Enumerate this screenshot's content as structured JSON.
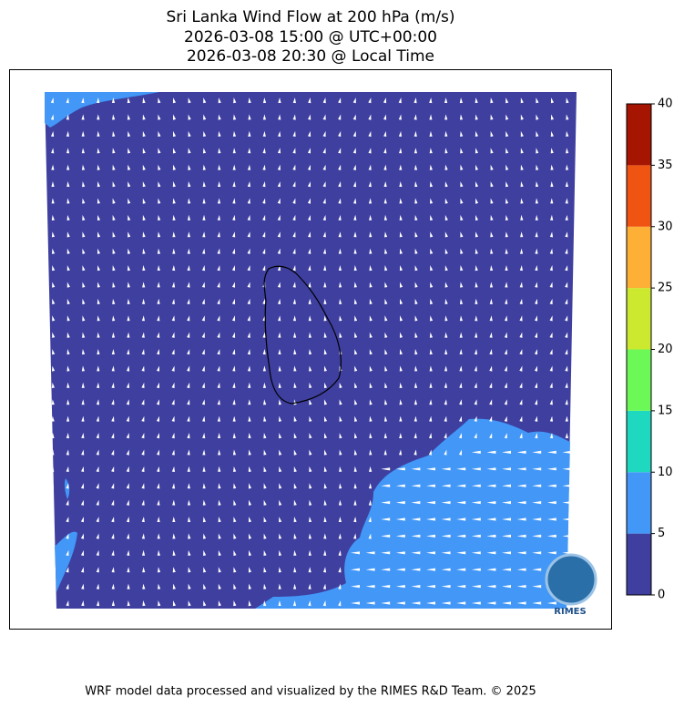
{
  "chart_data": {
    "type": "wind-map",
    "title": [
      "Sri Lanka Wind Flow at 200 hPa (m/s)",
      "2026-03-08 15:00 @ UTC+00:00",
      "2026-03-08 20:30 @ Local Time"
    ],
    "colorbar_ticks": [
      0,
      5,
      10,
      15,
      20,
      25,
      30,
      35,
      40
    ],
    "colors": [
      "#3e3f9f",
      "#4297f7",
      "#1ed8bf",
      "#6cf957",
      "#cce92f",
      "#fdaf36",
      "#ef5413",
      "#a51502"
    ],
    "logo_text": "RIMES",
    "footer": "WRF model data processed and visualized by the RIMES R&D Team. © 2025"
  }
}
